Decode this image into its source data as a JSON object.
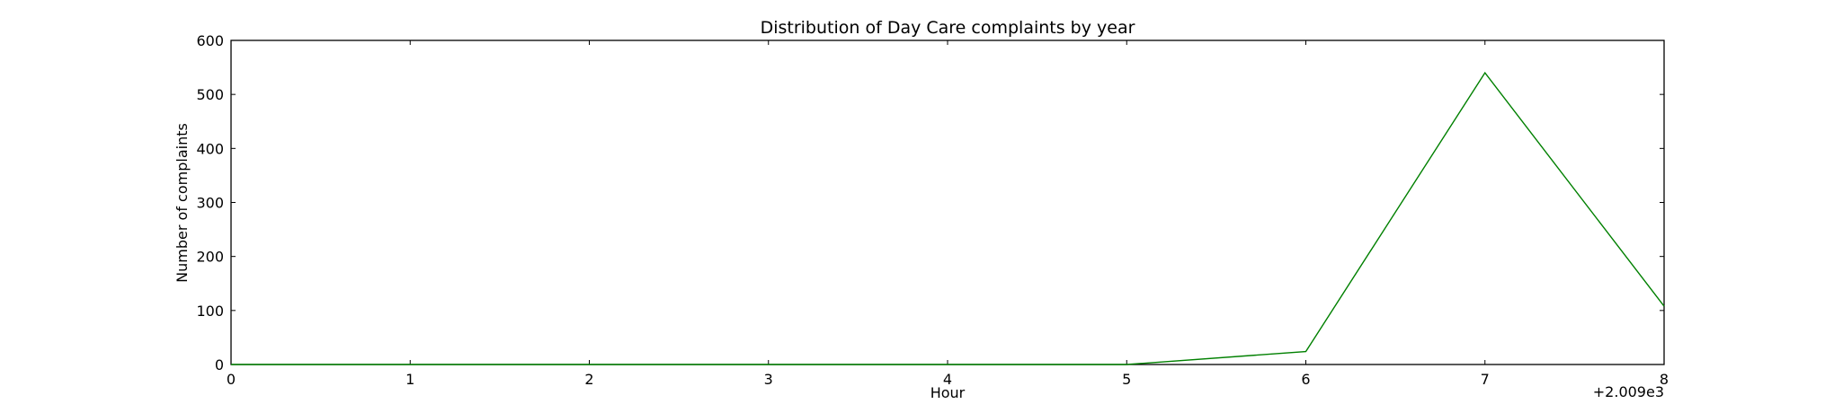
{
  "chart_data": {
    "type": "line",
    "title": "Distribution of  Day Care complaints by year",
    "xlabel": "Hour",
    "ylabel": "Number of complaints",
    "x_offset_label": "+2.009e3",
    "x": [
      0,
      1,
      2,
      3,
      4,
      5,
      6,
      7,
      8
    ],
    "xlim": [
      0,
      8
    ],
    "ylim": [
      0,
      600
    ],
    "x_ticks": [
      0,
      1,
      2,
      3,
      4,
      5,
      6,
      7,
      8
    ],
    "y_ticks": [
      0,
      100,
      200,
      300,
      400,
      500,
      600
    ],
    "grid": false,
    "legend": "none",
    "series": [
      {
        "color": "#008000",
        "values": [
          0,
          0,
          0,
          0,
          0,
          0,
          24,
          540,
          108
        ]
      }
    ]
  }
}
